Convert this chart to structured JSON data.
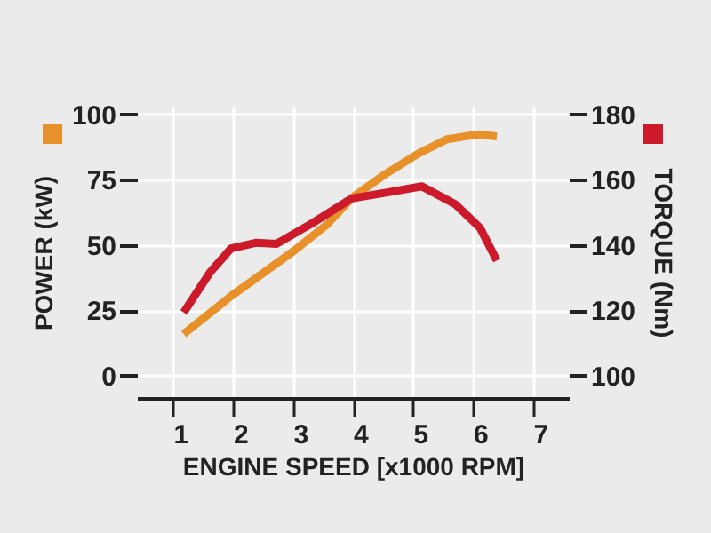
{
  "chart_data": {
    "type": "line",
    "xlabel": "ENGINE SPEED [x1000 RPM]",
    "ylabel": "POWER (kW)",
    "y2label": "TORQUE (Nm)",
    "xlim": [
      0.4,
      7.6
    ],
    "xticks": [
      1,
      2,
      3,
      4,
      5,
      6,
      7
    ],
    "ylim": [
      -8.5,
      103
    ],
    "yticks": [
      0,
      25,
      50,
      75,
      100
    ],
    "y2lim": [
      93.2,
      182.4
    ],
    "y2ticks": [
      100,
      120,
      140,
      160,
      180
    ],
    "grid": true,
    "line_style": "solid",
    "series": [
      {
        "color": "#e8912a",
        "x": [
          1.18,
          1.97,
          3.0,
          3.56,
          3.98,
          4.53,
          5.09,
          5.57,
          6.06,
          6.4
        ],
        "values": [
          16,
          30.5,
          47.5,
          57.7,
          68,
          77,
          85,
          90.5,
          92.3,
          91.6
        ]
      },
      {
        "color": "#cc1a2b",
        "axis": "y2",
        "x": [
          1.18,
          1.62,
          1.97,
          2.38,
          2.73,
          3.35,
          3.98,
          4.53,
          5.15,
          5.71,
          6.12,
          6.4
        ],
        "values": [
          119.4,
          131.7,
          139,
          140.7,
          140.4,
          147,
          154.3,
          156,
          158,
          152.5,
          145.3,
          135.3
        ]
      }
    ]
  }
}
